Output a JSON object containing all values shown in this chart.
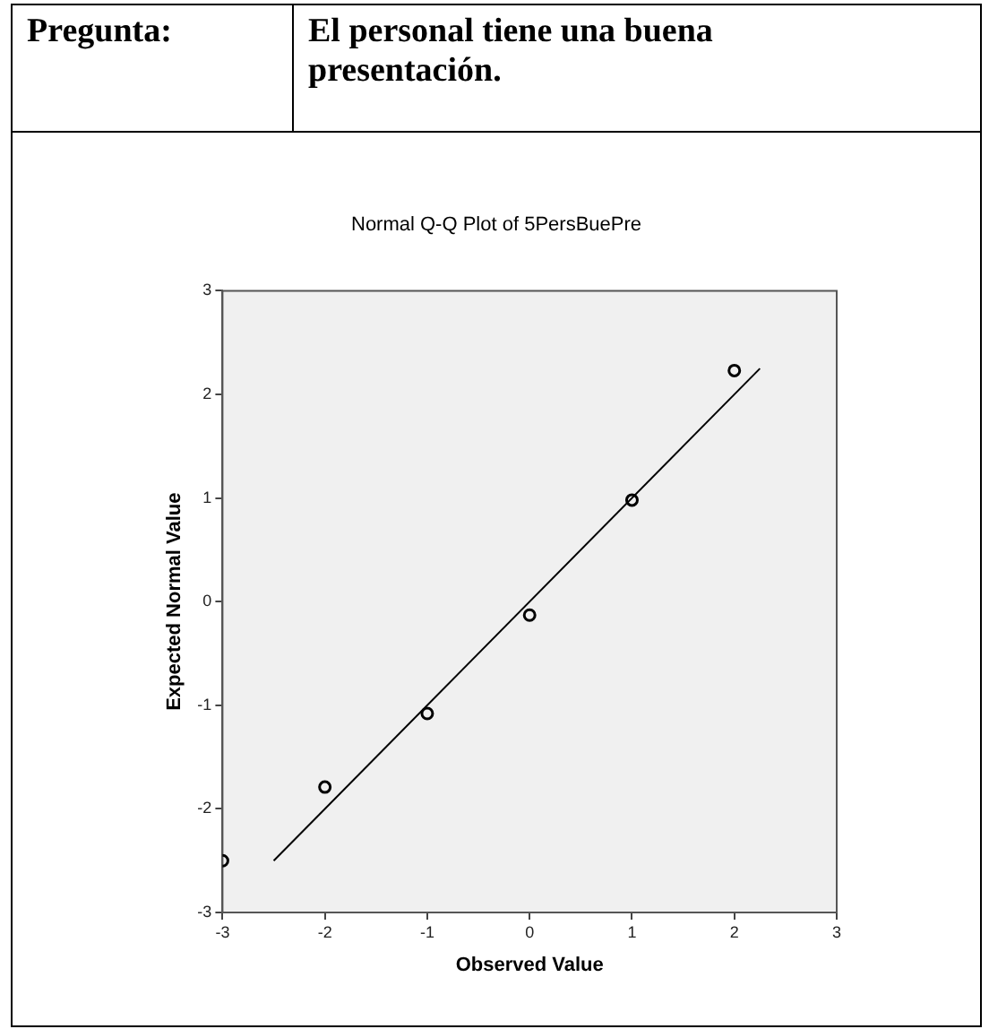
{
  "chart_data": {
    "type": "scatter",
    "title": "Normal Q-Q Plot of 5PersBuePre",
    "xlabel": "Observed Value",
    "ylabel": "Expected Normal Value",
    "annotations": [
      "Pregunta:",
      "El personal tiene una buena presentación."
    ],
    "xlim": [
      -3,
      3
    ],
    "xticks": [
      -3,
      -2,
      -1,
      0,
      1,
      2,
      3
    ],
    "ylim": [
      -3,
      3
    ],
    "yticks": [
      -3,
      -2,
      -1,
      0,
      1,
      2,
      3
    ],
    "grid": false,
    "legend": false,
    "series": [
      {
        "type": "scatter",
        "color": "#000000",
        "marker": "circle",
        "x": [
          -3,
          -2,
          -1,
          0,
          1,
          2
        ],
        "values": [
          -2.5,
          -1.79,
          -1.08,
          -0.13,
          0.98,
          2.23
        ]
      },
      {
        "type": "line",
        "color": "#000000",
        "marker": "none",
        "line_style": "solid",
        "x": [
          -2.5,
          2.25
        ],
        "values": [
          -2.5,
          2.25
        ]
      }
    ]
  }
}
